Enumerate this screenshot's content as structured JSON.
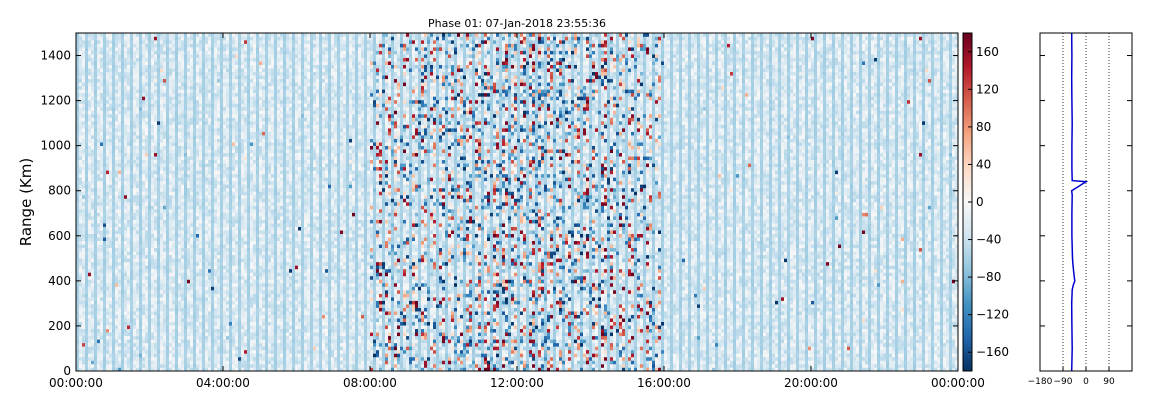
{
  "chart_data": [
    {
      "type": "heatmap",
      "title": "Phase 01: 07-Jan-2018 23:55:36",
      "ylabel": "Range (Km)",
      "xlabel": "",
      "xlim": [
        "00:00:00",
        "24:00:00"
      ],
      "xticks": [
        "00:00:00",
        "04:00:00",
        "08:00:00",
        "12:00:00",
        "16:00:00",
        "20:00:00",
        "00:00:00"
      ],
      "ylim": [
        0,
        1500
      ],
      "yticks": [
        0,
        200,
        400,
        600,
        800,
        1000,
        1200,
        1400
      ],
      "colormap": "RdBu_r",
      "colorbar": {
        "min": -180,
        "max": 180,
        "ticks": [
          -160,
          -120,
          -80,
          -40,
          0,
          40,
          80,
          120,
          160
        ]
      },
      "description_of_data": "phase values over time (hours) and range (km); high-variance noise between 08:00 and 16:00, weak negative background elsewhere",
      "noisy_interval_hours": [
        8,
        16
      ],
      "empty_rows_km": [
        90,
        100
      ]
    },
    {
      "type": "line",
      "xlim": [
        -180,
        180
      ],
      "xticks": [
        -180,
        -90,
        0,
        90
      ],
      "xtick_labels": [
        "−180",
        "−90",
        "0",
        "90"
      ],
      "ylim": [
        0,
        1500
      ],
      "grid_vertical_dotted": [
        -90,
        0,
        90
      ],
      "color": "#0000cc",
      "points": [
        {
          "x": -56,
          "y": 0
        },
        {
          "x": -54,
          "y": 100
        },
        {
          "x": -55,
          "y": 200
        },
        {
          "x": -56,
          "y": 300
        },
        {
          "x": -54,
          "y": 360
        },
        {
          "x": -50,
          "y": 380
        },
        {
          "x": -44,
          "y": 400
        },
        {
          "x": -46,
          "y": 420
        },
        {
          "x": -48,
          "y": 440
        },
        {
          "x": -51,
          "y": 470
        },
        {
          "x": -53,
          "y": 500
        },
        {
          "x": -55,
          "y": 600
        },
        {
          "x": -55,
          "y": 700
        },
        {
          "x": -54,
          "y": 780
        },
        {
          "x": -56,
          "y": 800
        },
        {
          "x": 0,
          "y": 840
        },
        {
          "x": -54,
          "y": 845
        },
        {
          "x": -55,
          "y": 900
        },
        {
          "x": -55,
          "y": 1000
        },
        {
          "x": -54,
          "y": 1100
        },
        {
          "x": -55,
          "y": 1200
        },
        {
          "x": -56,
          "y": 1300
        },
        {
          "x": -55,
          "y": 1400
        },
        {
          "x": -56,
          "y": 1500
        }
      ]
    }
  ]
}
